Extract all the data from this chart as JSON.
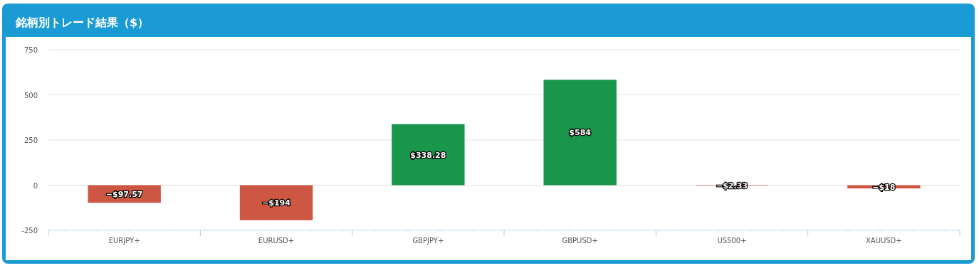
{
  "chart_data": {
    "type": "bar",
    "title": "銘柄別トレード結果（$）",
    "categories": [
      "EURJPY+",
      "EURUSD+",
      "GBPJPY+",
      "GBPUSD+",
      "US500+",
      "XAUUSD+"
    ],
    "values": [
      -97.57,
      -194,
      338.28,
      584,
      -2.33,
      -18
    ],
    "colors": [
      "#cd5742",
      "#cd5742",
      "#1a954c",
      "#1a954c",
      "#cd5742",
      "#cd5742"
    ],
    "value_labels": [
      "−$97.57",
      "−$194",
      "$338.28",
      "$584",
      "−$2.33",
      "−$18"
    ],
    "ylim": [
      -250,
      750
    ],
    "yticks": [
      -250,
      0,
      250,
      500,
      750
    ],
    "grid": "y"
  }
}
